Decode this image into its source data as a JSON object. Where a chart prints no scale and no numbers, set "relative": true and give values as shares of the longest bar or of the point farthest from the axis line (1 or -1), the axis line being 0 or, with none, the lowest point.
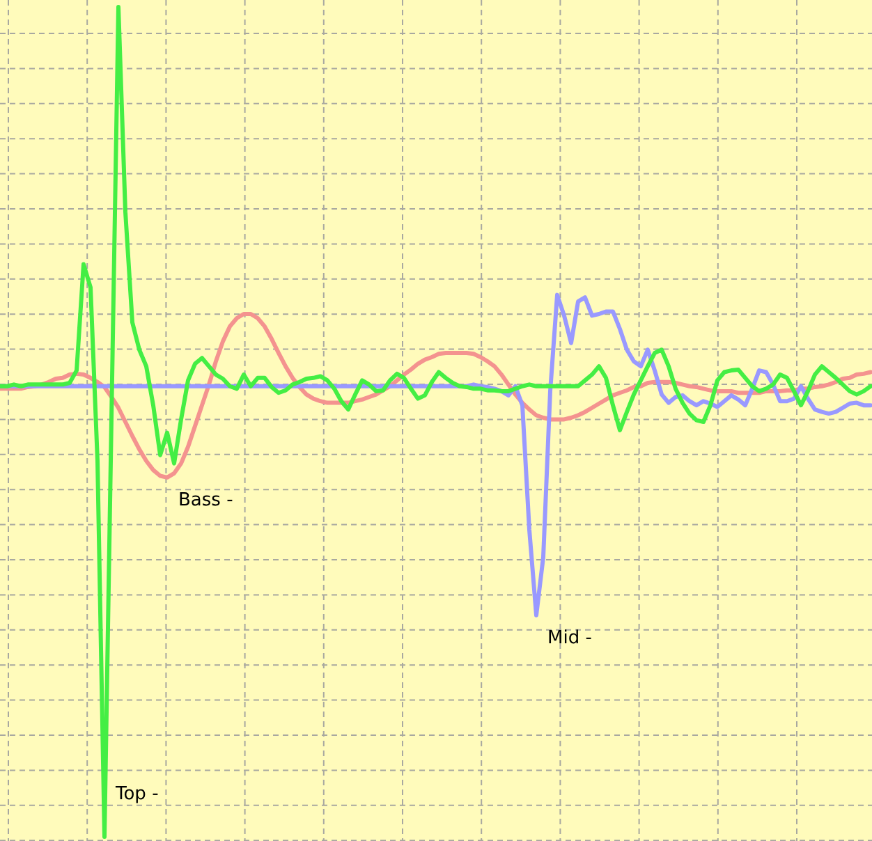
{
  "chart_data": {
    "type": "line",
    "relative": true,
    "grid": true,
    "categories": [
      null,
      null,
      null,
      null,
      null,
      null,
      null,
      null,
      null,
      null,
      null,
      null,
      null,
      null,
      null,
      null,
      null,
      null,
      null,
      null,
      null,
      null,
      null,
      null,
      null,
      null,
      null,
      null,
      null,
      null,
      null,
      null,
      null,
      null,
      null,
      null,
      null,
      null,
      null,
      null,
      null,
      null,
      null,
      null,
      null,
      null,
      null,
      null,
      null,
      null,
      null,
      null,
      null,
      null,
      null,
      null,
      null,
      null,
      null,
      null,
      null,
      null,
      null,
      null,
      null,
      null,
      null,
      null,
      null,
      null,
      null,
      null,
      null,
      null,
      null,
      null,
      null,
      null,
      null,
      null,
      null,
      null,
      null,
      null,
      null,
      null,
      null,
      null,
      null,
      null,
      null,
      null,
      null,
      null,
      null,
      null,
      null,
      null,
      null,
      null,
      null,
      null,
      null,
      null,
      null,
      null,
      null,
      null,
      null,
      null,
      null,
      null,
      null,
      null,
      null,
      null,
      null,
      null,
      null,
      null,
      null,
      null,
      null,
      null,
      null,
      null
    ],
    "series": [
      {
        "name": "Bass -",
        "color": "#f4938f",
        "values": [
          0.54,
          0.54,
          0.54,
          0.54,
          0.542,
          0.543,
          0.545,
          0.548,
          0.552,
          0.553,
          0.557,
          0.558,
          0.557,
          0.553,
          0.548,
          0.542,
          0.53,
          0.517,
          0.5,
          0.483,
          0.467,
          0.453,
          0.442,
          0.435,
          0.433,
          0.438,
          0.45,
          0.47,
          0.495,
          0.52,
          0.545,
          0.573,
          0.597,
          0.615,
          0.625,
          0.63,
          0.63,
          0.625,
          0.615,
          0.6,
          0.583,
          0.567,
          0.553,
          0.542,
          0.533,
          0.528,
          0.525,
          0.523,
          0.523,
          0.523,
          0.523,
          0.525,
          0.527,
          0.53,
          0.533,
          0.538,
          0.543,
          0.55,
          0.557,
          0.563,
          0.57,
          0.575,
          0.578,
          0.582,
          0.583,
          0.583,
          0.583,
          0.583,
          0.582,
          0.578,
          0.573,
          0.567,
          0.557,
          0.545,
          0.533,
          0.523,
          0.515,
          0.508,
          0.505,
          0.503,
          0.503,
          0.503,
          0.505,
          0.508,
          0.512,
          0.517,
          0.522,
          0.527,
          0.532,
          0.535,
          0.538,
          0.542,
          0.543,
          0.547,
          0.548,
          0.548,
          0.548,
          0.547,
          0.545,
          0.543,
          0.542,
          0.54,
          0.538,
          0.537,
          0.537,
          0.537,
          0.535,
          0.535,
          0.535,
          0.535,
          0.537,
          0.537,
          0.537,
          0.538,
          0.538,
          0.54,
          0.54,
          0.542,
          0.543,
          0.545,
          0.548,
          0.552,
          0.553,
          0.557,
          0.558,
          0.56
        ]
      },
      {
        "name": "Mid -",
        "color": "#9999ff",
        "values": [
          0.543,
          0.543,
          0.543,
          0.543,
          0.543,
          0.543,
          0.543,
          0.543,
          0.543,
          0.543,
          0.543,
          0.543,
          0.543,
          0.543,
          0.543,
          0.543,
          0.543,
          0.543,
          0.543,
          0.543,
          0.543,
          0.543,
          0.543,
          0.543,
          0.543,
          0.543,
          0.543,
          0.543,
          0.543,
          0.543,
          0.543,
          0.543,
          0.543,
          0.543,
          0.543,
          0.543,
          0.543,
          0.543,
          0.543,
          0.543,
          0.543,
          0.543,
          0.543,
          0.543,
          0.543,
          0.543,
          0.543,
          0.543,
          0.543,
          0.543,
          0.543,
          0.543,
          0.543,
          0.543,
          0.543,
          0.543,
          0.543,
          0.543,
          0.543,
          0.543,
          0.543,
          0.543,
          0.543,
          0.543,
          0.543,
          0.543,
          0.543,
          0.543,
          0.545,
          0.543,
          0.542,
          0.54,
          0.537,
          0.532,
          0.543,
          0.52,
          0.37,
          0.267,
          0.337,
          0.537,
          0.653,
          0.628,
          0.595,
          0.645,
          0.65,
          0.628,
          0.63,
          0.633,
          0.633,
          0.612,
          0.587,
          0.573,
          0.567,
          0.587,
          0.562,
          0.533,
          0.523,
          0.53,
          0.532,
          0.525,
          0.52,
          0.525,
          0.522,
          0.518,
          0.525,
          0.532,
          0.527,
          0.52,
          0.54,
          0.562,
          0.56,
          0.545,
          0.525,
          0.525,
          0.528,
          0.543,
          0.528,
          0.515,
          0.512,
          0.51,
          0.512,
          0.517,
          0.522,
          0.523,
          0.52,
          0.52
        ]
      },
      {
        "name": "Top -",
        "color": "#44ee44",
        "values": [
          0.543,
          0.543,
          0.545,
          0.543,
          0.545,
          0.545,
          0.545,
          0.545,
          0.545,
          0.545,
          0.547,
          0.562,
          0.69,
          0.662,
          0.453,
          0,
          0.503,
          1,
          0.753,
          0.62,
          0.587,
          0.567,
          0.52,
          0.46,
          0.487,
          0.45,
          0.503,
          0.55,
          0.57,
          0.577,
          0.567,
          0.557,
          0.552,
          0.543,
          0.54,
          0.557,
          0.543,
          0.553,
          0.553,
          0.542,
          0.535,
          0.538,
          0.545,
          0.548,
          0.552,
          0.553,
          0.555,
          0.55,
          0.54,
          0.525,
          0.515,
          0.533,
          0.55,
          0.545,
          0.537,
          0.538,
          0.55,
          0.558,
          0.553,
          0.54,
          0.528,
          0.532,
          0.548,
          0.56,
          0.553,
          0.547,
          0.543,
          0.542,
          0.54,
          0.54,
          0.538,
          0.538,
          0.537,
          0.537,
          0.54,
          0.543,
          0.545,
          0.543,
          0.543,
          0.543,
          0.543,
          0.543,
          0.543,
          0.543,
          0.55,
          0.557,
          0.567,
          0.553,
          0.52,
          0.49,
          0.512,
          0.533,
          0.55,
          0.567,
          0.583,
          0.587,
          0.567,
          0.54,
          0.523,
          0.51,
          0.502,
          0.5,
          0.52,
          0.55,
          0.56,
          0.562,
          0.563,
          0.553,
          0.543,
          0.537,
          0.54,
          0.545,
          0.557,
          0.553,
          0.537,
          0.52,
          0.537,
          0.557,
          0.567,
          0.56,
          0.553,
          0.545,
          0.537,
          0.533,
          0.537,
          0.543
        ]
      }
    ]
  }
}
